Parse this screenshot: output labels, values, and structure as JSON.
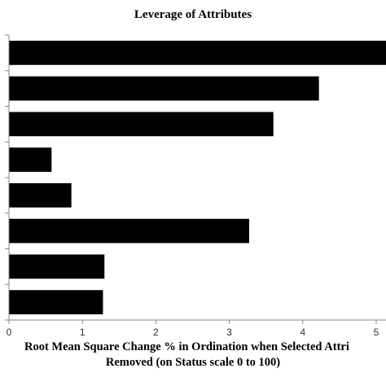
{
  "chart_data": {
    "type": "bar",
    "orientation": "horizontal",
    "title": "Leverage of Attributes",
    "xlabel_lines": [
      "Root Mean Square Change % in Ordination when Selected Attri",
      "Removed (on Status scale 0 to 100)"
    ],
    "ylabel": "",
    "xlim": [
      0,
      5.4
    ],
    "x_ticks": [
      "0",
      "1",
      "2",
      "3",
      "4",
      "5"
    ],
    "categories": [
      "",
      "",
      "",
      "",
      "",
      "",
      "",
      ""
    ],
    "values": [
      5.32,
      4.22,
      3.6,
      0.58,
      0.85,
      3.27,
      1.3,
      1.28
    ],
    "bar_color": "#000000",
    "grid": false,
    "legend": "none"
  }
}
